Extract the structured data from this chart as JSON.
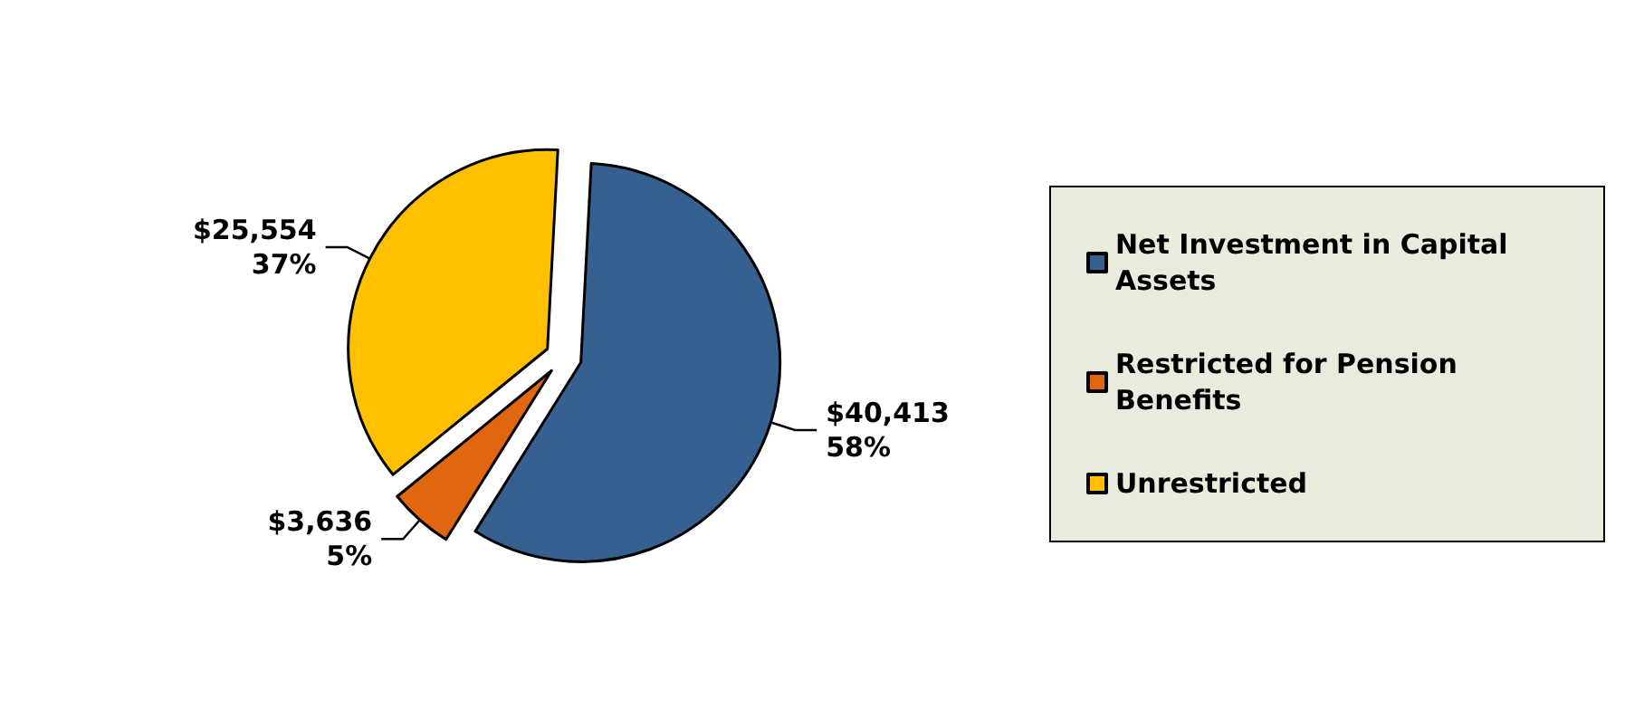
{
  "chart_data": {
    "type": "pie",
    "categories": [
      "Net Investment in Capital Assets",
      "Restricted for Pension Benefits",
      "Unrestricted"
    ],
    "values": [
      40413,
      3636,
      25554
    ],
    "colors": [
      "#356090",
      "#e0660f",
      "#ffc000"
    ],
    "value_labels": [
      "$40,413\n58%",
      "$3,636\n5%",
      "$25,554\n37%"
    ],
    "legend": "right"
  }
}
